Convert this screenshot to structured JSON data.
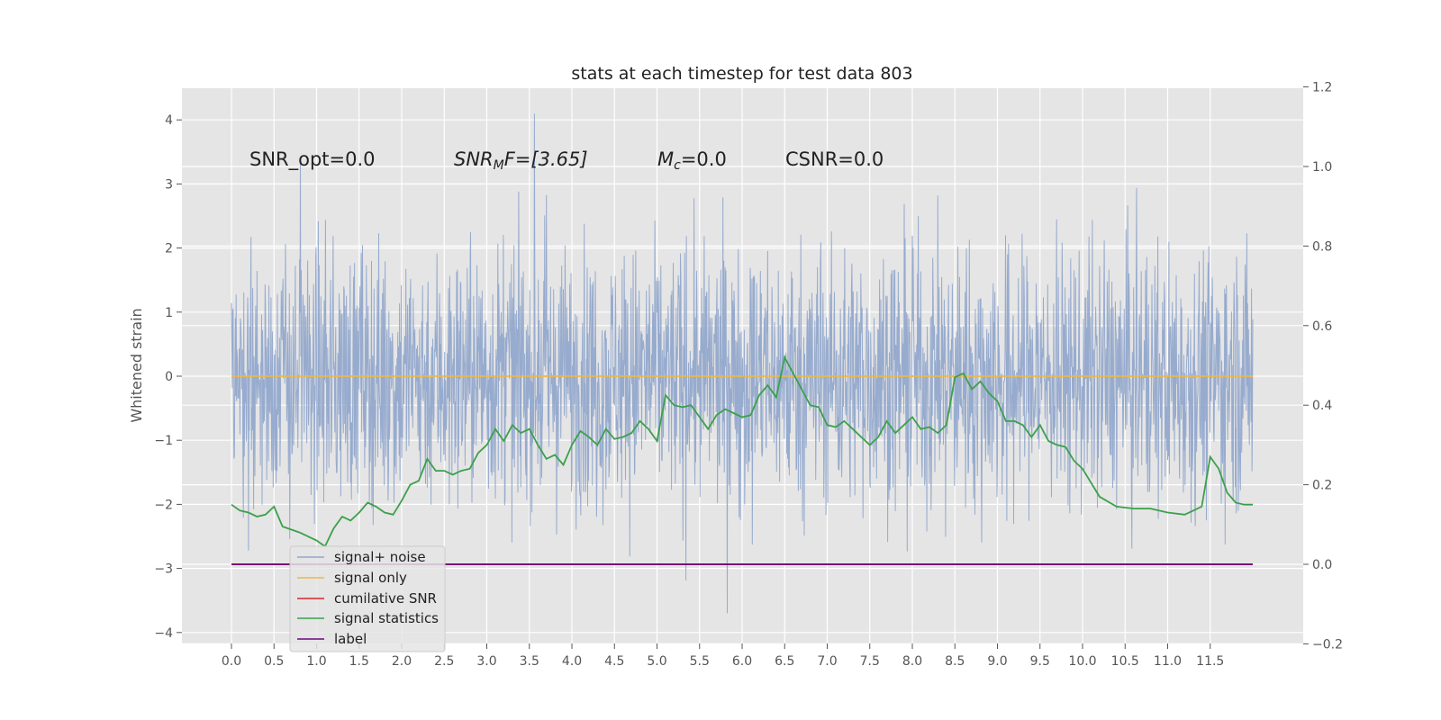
{
  "chart_data": {
    "type": "line",
    "title": "stats at each timestep for test data 803",
    "ylabel": "Whitened strain",
    "y2label": "",
    "xlim": [
      -0.6,
      12.6
    ],
    "ylim": [
      -4.2,
      4.5
    ],
    "y2lim": [
      -0.2,
      1.2
    ],
    "x_ticks": [
      "0.0",
      "0.5",
      "1.0",
      "1.5",
      "2.0",
      "2.5",
      "3.0",
      "3.5",
      "4.0",
      "4.5",
      "5.0",
      "5.5",
      "6.0",
      "6.5",
      "7.0",
      "7.5",
      "8.0",
      "8.5",
      "9.0",
      "9.5",
      "10.0",
      "10.5",
      "11.0",
      "11.5"
    ],
    "y_ticks": [
      "4",
      "3",
      "2",
      "1",
      "0",
      "−1",
      "−2",
      "−3",
      "−4"
    ],
    "y2_ticks": [
      "1.2",
      "1.0",
      "0.8",
      "0.6",
      "0.4",
      "0.2",
      "0.0",
      "−0.2"
    ],
    "grid": true,
    "legend_position": "lower-left",
    "annotations": {
      "snr_opt": "SNR_opt=0.0",
      "snr_mf_base": "SNR",
      "snr_mf_sub": "M",
      "snr_mf_rest": "F=[3.65]",
      "mc_base": "M",
      "mc_sub": "c",
      "mc_rest": "=0.0",
      "csnr": "CSNR=0.0"
    },
    "series": [
      {
        "name": "signal+ noise",
        "color": "#92a8cc",
        "axis": "left",
        "kind": "noise",
        "x_range": [
          0.0,
          12.0
        ],
        "approx_band": [
          -2.3,
          2.1
        ],
        "peak_range": [
          -3.7,
          4.1
        ]
      },
      {
        "name": "signal only",
        "color": "#e8b84e",
        "axis": "left",
        "x": [
          0.0,
          12.0
        ],
        "values": [
          0.0,
          0.0
        ]
      },
      {
        "name": "cumilative SNR",
        "color": "#d62728",
        "axis": "right",
        "x": [
          0.0,
          12.0
        ],
        "values": [
          0.0,
          0.0
        ]
      },
      {
        "name": "signal statistics",
        "color": "#3ca04b",
        "axis": "right",
        "x": [
          0.0,
          0.1,
          0.2,
          0.3,
          0.4,
          0.5,
          0.6,
          0.8,
          1.0,
          1.1,
          1.2,
          1.3,
          1.4,
          1.5,
          1.6,
          1.7,
          1.8,
          1.9,
          2.0,
          2.1,
          2.2,
          2.3,
          2.4,
          2.5,
          2.6,
          2.7,
          2.8,
          2.9,
          3.0,
          3.1,
          3.2,
          3.3,
          3.4,
          3.5,
          3.6,
          3.7,
          3.8,
          3.9,
          4.0,
          4.1,
          4.2,
          4.3,
          4.4,
          4.5,
          4.6,
          4.7,
          4.8,
          4.9,
          5.0,
          5.1,
          5.2,
          5.3,
          5.4,
          5.5,
          5.6,
          5.7,
          5.8,
          5.9,
          6.0,
          6.1,
          6.2,
          6.3,
          6.4,
          6.5,
          6.6,
          6.7,
          6.8,
          6.9,
          7.0,
          7.1,
          7.2,
          7.3,
          7.4,
          7.5,
          7.6,
          7.7,
          7.8,
          7.9,
          8.0,
          8.1,
          8.2,
          8.3,
          8.4,
          8.5,
          8.6,
          8.7,
          8.8,
          8.9,
          9.0,
          9.1,
          9.2,
          9.3,
          9.4,
          9.5,
          9.6,
          9.7,
          9.8,
          9.9,
          10.0,
          10.2,
          10.4,
          10.6,
          10.8,
          11.0,
          11.2,
          11.4,
          11.5,
          11.6,
          11.7,
          11.8,
          11.9,
          12.0
        ],
        "values": [
          0.15,
          0.135,
          0.13,
          0.12,
          0.125,
          0.145,
          0.095,
          0.08,
          0.06,
          0.045,
          0.09,
          0.12,
          0.11,
          0.13,
          0.155,
          0.145,
          0.13,
          0.125,
          0.16,
          0.2,
          0.21,
          0.265,
          0.235,
          0.235,
          0.225,
          0.235,
          0.24,
          0.28,
          0.3,
          0.34,
          0.31,
          0.35,
          0.33,
          0.34,
          0.3,
          0.265,
          0.275,
          0.25,
          0.3,
          0.335,
          0.32,
          0.3,
          0.34,
          0.315,
          0.32,
          0.33,
          0.36,
          0.34,
          0.31,
          0.425,
          0.4,
          0.395,
          0.4,
          0.37,
          0.34,
          0.375,
          0.39,
          0.38,
          0.37,
          0.375,
          0.425,
          0.45,
          0.42,
          0.52,
          0.48,
          0.44,
          0.4,
          0.395,
          0.35,
          0.345,
          0.36,
          0.34,
          0.32,
          0.3,
          0.32,
          0.36,
          0.33,
          0.35,
          0.37,
          0.34,
          0.345,
          0.33,
          0.35,
          0.47,
          0.48,
          0.44,
          0.46,
          0.43,
          0.41,
          0.36,
          0.36,
          0.35,
          0.32,
          0.35,
          0.31,
          0.3,
          0.295,
          0.26,
          0.24,
          0.17,
          0.145,
          0.14,
          0.14,
          0.13,
          0.125,
          0.145,
          0.27,
          0.24,
          0.18,
          0.155,
          0.15,
          0.15
        ]
      },
      {
        "name": "label",
        "color": "#6a0a7a",
        "axis": "right",
        "x": [
          0.0,
          12.0
        ],
        "values": [
          0.0,
          0.0
        ]
      }
    ]
  }
}
